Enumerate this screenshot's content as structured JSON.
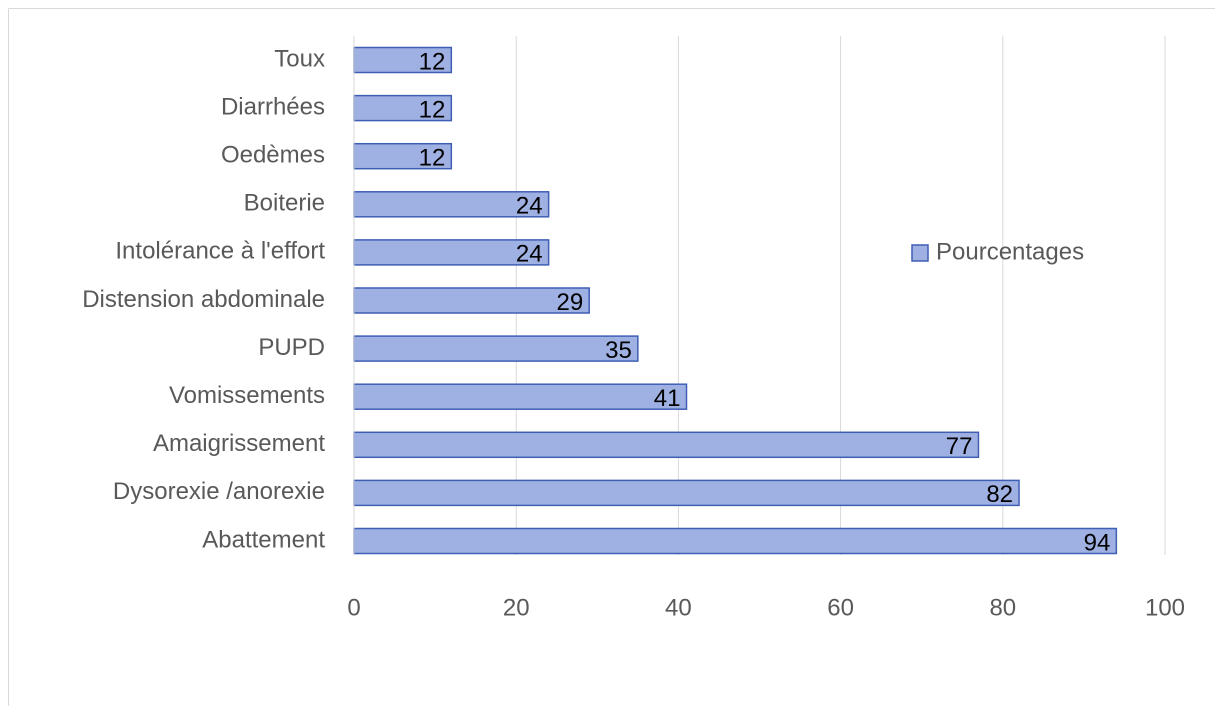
{
  "chart_data": {
    "type": "bar",
    "orientation": "horizontal",
    "categories": [
      "Toux",
      "Diarrhées",
      "Oedèmes",
      "Boiterie",
      "Intolérance à l'effort",
      "Distension abdominale",
      "PUPD",
      "Vomissements",
      "Amaigrissement",
      "Dysorexie /anorexie",
      "Abattement"
    ],
    "series": [
      {
        "name": "Pourcentages",
        "color": "#9fb0e3",
        "values": [
          12,
          12,
          12,
          24,
          24,
          29,
          35,
          41,
          77,
          82,
          94
        ]
      }
    ],
    "xlim": [
      0,
      100
    ],
    "xticks": [
      0,
      20,
      40,
      60,
      80,
      100
    ],
    "grid": true,
    "legend": "right"
  }
}
